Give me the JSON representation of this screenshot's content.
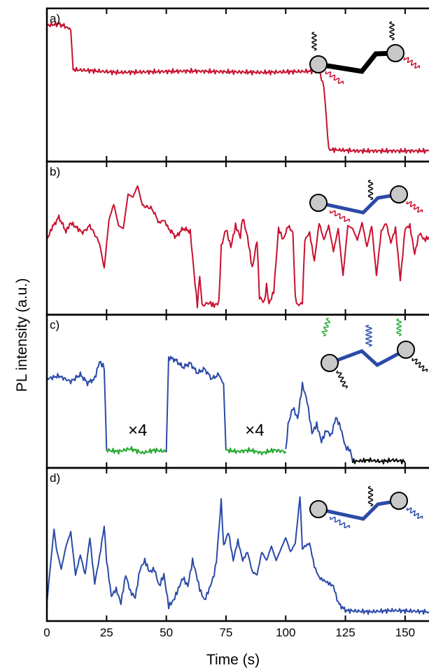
{
  "colors": {
    "red": "#c8102e",
    "blue": "#2b4aa8",
    "green": "#22a82c",
    "black": "#000000",
    "bead": "#c8c8c8"
  },
  "chart_data": {
    "type": "line",
    "xlabel": "Time (s)",
    "ylabel": "PL intensity (a.u.)",
    "xlim": [
      0,
      160
    ],
    "xticks": [
      0,
      25,
      50,
      75,
      100,
      125,
      150
    ],
    "panels": [
      {
        "label": "a)",
        "segments": [
          {
            "color": "red",
            "points": [
              [
                0,
                0.93
              ],
              [
                5,
                0.94
              ],
              [
                8,
                0.92
              ],
              [
                10,
                0.9
              ],
              [
                11,
                0.62
              ],
              [
                30,
                0.6
              ],
              [
                60,
                0.61
              ],
              [
                90,
                0.6
              ],
              [
                114,
                0.61
              ],
              [
                116,
                0.5
              ],
              [
                118,
                0.06
              ],
              [
                130,
                0.05
              ],
              [
                160,
                0.05
              ]
            ]
          }
        ],
        "annotations": [],
        "inset": "black"
      },
      {
        "label": "b)",
        "segments": [
          {
            "color": "red",
            "points": [
              [
                0,
                0.5
              ],
              [
                2,
                0.58
              ],
              [
                5,
                0.66
              ],
              [
                8,
                0.56
              ],
              [
                10,
                0.62
              ],
              [
                15,
                0.55
              ],
              [
                18,
                0.6
              ],
              [
                22,
                0.48
              ],
              [
                24,
                0.3
              ],
              [
                26,
                0.64
              ],
              [
                28,
                0.75
              ],
              [
                30,
                0.6
              ],
              [
                32,
                0.58
              ],
              [
                34,
                0.82
              ],
              [
                36,
                0.8
              ],
              [
                38,
                0.88
              ],
              [
                40,
                0.74
              ],
              [
                44,
                0.72
              ],
              [
                47,
                0.62
              ],
              [
                49,
                0.64
              ],
              [
                51,
                0.58
              ],
              [
                54,
                0.52
              ],
              [
                57,
                0.58
              ],
              [
                60,
                0.56
              ],
              [
                62,
                0.2
              ],
              [
                63,
                0.04
              ],
              [
                64,
                0.25
              ],
              [
                65,
                0.04
              ],
              [
                68,
                0.06
              ],
              [
                70,
                0.04
              ],
              [
                72,
                0.06
              ],
              [
                73,
                0.45
              ],
              [
                75,
                0.58
              ],
              [
                77,
                0.45
              ],
              [
                79,
                0.6
              ],
              [
                81,
                0.52
              ],
              [
                82,
                0.66
              ],
              [
                84,
                0.52
              ],
              [
                86,
                0.3
              ],
              [
                88,
                0.5
              ],
              [
                89,
                0.1
              ],
              [
                91,
                0.06
              ],
              [
                92,
                0.18
              ],
              [
                93,
                0.05
              ],
              [
                95,
                0.14
              ],
              [
                97,
                0.58
              ],
              [
                99,
                0.5
              ],
              [
                101,
                0.6
              ],
              [
                103,
                0.55
              ],
              [
                104,
                0.1
              ],
              [
                105,
                0.04
              ],
              [
                107,
                0.06
              ],
              [
                108,
                0.5
              ],
              [
                110,
                0.55
              ],
              [
                112,
                0.35
              ],
              [
                114,
                0.62
              ],
              [
                116,
                0.5
              ],
              [
                118,
                0.6
              ],
              [
                120,
                0.42
              ],
              [
                122,
                0.58
              ],
              [
                124,
                0.25
              ],
              [
                126,
                0.6
              ],
              [
                128,
                0.58
              ],
              [
                130,
                0.5
              ],
              [
                132,
                0.62
              ],
              [
                134,
                0.45
              ],
              [
                136,
                0.6
              ],
              [
                138,
                0.25
              ],
              [
                140,
                0.56
              ],
              [
                142,
                0.62
              ],
              [
                144,
                0.48
              ],
              [
                146,
                0.58
              ],
              [
                148,
                0.22
              ],
              [
                150,
                0.58
              ],
              [
                152,
                0.6
              ],
              [
                154,
                0.4
              ],
              [
                156,
                0.55
              ],
              [
                158,
                0.5
              ],
              [
                160,
                0.52
              ]
            ]
          }
        ],
        "annotations": [],
        "inset": "blue"
      },
      {
        "label": "c)",
        "segments": [
          {
            "color": "blue",
            "points": [
              [
                0,
                0.6
              ],
              [
                5,
                0.62
              ],
              [
                10,
                0.58
              ],
              [
                14,
                0.63
              ],
              [
                17,
                0.57
              ],
              [
                20,
                0.6
              ],
              [
                22,
                0.72
              ],
              [
                24,
                0.68
              ],
              [
                25,
                0.1
              ]
            ]
          },
          {
            "color": "green",
            "points": [
              [
                25,
                0.1
              ],
              [
                30,
                0.09
              ],
              [
                35,
                0.11
              ],
              [
                40,
                0.08
              ],
              [
                45,
                0.1
              ],
              [
                50,
                0.09
              ]
            ]
          },
          {
            "color": "blue",
            "points": [
              [
                50,
                0.09
              ],
              [
                51,
                0.75
              ],
              [
                54,
                0.73
              ],
              [
                57,
                0.68
              ],
              [
                60,
                0.71
              ],
              [
                63,
                0.64
              ],
              [
                66,
                0.67
              ],
              [
                69,
                0.6
              ],
              [
                72,
                0.63
              ],
              [
                74,
                0.56
              ],
              [
                75,
                0.1
              ]
            ]
          },
          {
            "color": "green",
            "points": [
              [
                75,
                0.1
              ],
              [
                80,
                0.09
              ],
              [
                85,
                0.1
              ],
              [
                90,
                0.08
              ],
              [
                95,
                0.1
              ],
              [
                100,
                0.09
              ]
            ]
          },
          {
            "color": "blue",
            "points": [
              [
                100,
                0.09
              ],
              [
                101,
                0.28
              ],
              [
                103,
                0.4
              ],
              [
                105,
                0.32
              ],
              [
                107,
                0.56
              ],
              [
                109,
                0.44
              ],
              [
                111,
                0.22
              ],
              [
                113,
                0.28
              ],
              [
                115,
                0.16
              ],
              [
                117,
                0.24
              ],
              [
                119,
                0.2
              ],
              [
                121,
                0.33
              ],
              [
                123,
                0.26
              ],
              [
                125,
                0.12
              ],
              [
                127,
                0.1
              ],
              [
                128,
                0.02
              ]
            ]
          },
          {
            "color": "black",
            "points": [
              [
                128,
                0.02
              ],
              [
                135,
                0.03
              ],
              [
                140,
                0.02
              ],
              [
                145,
                0.03
              ],
              [
                150,
                0.02
              ]
            ]
          }
        ],
        "annotations": [
          {
            "text": "×4",
            "x": 38,
            "y": 0.2
          },
          {
            "text": "×4",
            "x": 87,
            "y": 0.2
          }
        ],
        "inset": "blue-green"
      },
      {
        "label": "d)",
        "segments": [
          {
            "color": "blue",
            "points": [
              [
                0,
                0.1
              ],
              [
                1,
                0.28
              ],
              [
                3,
                0.62
              ],
              [
                4,
                0.48
              ],
              [
                6,
                0.34
              ],
              [
                8,
                0.5
              ],
              [
                10,
                0.6
              ],
              [
                12,
                0.3
              ],
              [
                14,
                0.44
              ],
              [
                16,
                0.3
              ],
              [
                18,
                0.56
              ],
              [
                20,
                0.24
              ],
              [
                22,
                0.42
              ],
              [
                24,
                0.64
              ],
              [
                25,
                0.4
              ],
              [
                27,
                0.15
              ],
              [
                29,
                0.2
              ],
              [
                31,
                0.1
              ],
              [
                33,
                0.3
              ],
              [
                35,
                0.18
              ],
              [
                37,
                0.14
              ],
              [
                39,
                0.34
              ],
              [
                41,
                0.4
              ],
              [
                43,
                0.32
              ],
              [
                45,
                0.34
              ],
              [
                47,
                0.22
              ],
              [
                49,
                0.3
              ],
              [
                51,
                0.08
              ],
              [
                53,
                0.12
              ],
              [
                55,
                0.2
              ],
              [
                57,
                0.28
              ],
              [
                59,
                0.22
              ],
              [
                61,
                0.4
              ],
              [
                62,
                0.34
              ],
              [
                64,
                0.2
              ],
              [
                66,
                0.12
              ],
              [
                68,
                0.2
              ],
              [
                70,
                0.3
              ],
              [
                71,
                0.4
              ],
              [
                73,
                0.82
              ],
              [
                74,
                0.5
              ],
              [
                76,
                0.6
              ],
              [
                78,
                0.4
              ],
              [
                80,
                0.54
              ],
              [
                82,
                0.4
              ],
              [
                84,
                0.46
              ],
              [
                86,
                0.32
              ],
              [
                88,
                0.3
              ],
              [
                90,
                0.46
              ],
              [
                92,
                0.4
              ],
              [
                94,
                0.5
              ],
              [
                96,
                0.4
              ],
              [
                98,
                0.48
              ],
              [
                100,
                0.56
              ],
              [
                102,
                0.46
              ],
              [
                104,
                0.52
              ],
              [
                106,
                0.85
              ],
              [
                107,
                0.48
              ],
              [
                108,
                0.5
              ],
              [
                110,
                0.52
              ],
              [
                112,
                0.36
              ],
              [
                114,
                0.28
              ],
              [
                116,
                0.26
              ],
              [
                118,
                0.24
              ],
              [
                120,
                0.22
              ],
              [
                122,
                0.1
              ],
              [
                125,
                0.05
              ],
              [
                135,
                0.04
              ],
              [
                145,
                0.05
              ],
              [
                160,
                0.04
              ]
            ]
          }
        ],
        "annotations": [],
        "inset": "blue"
      }
    ]
  }
}
